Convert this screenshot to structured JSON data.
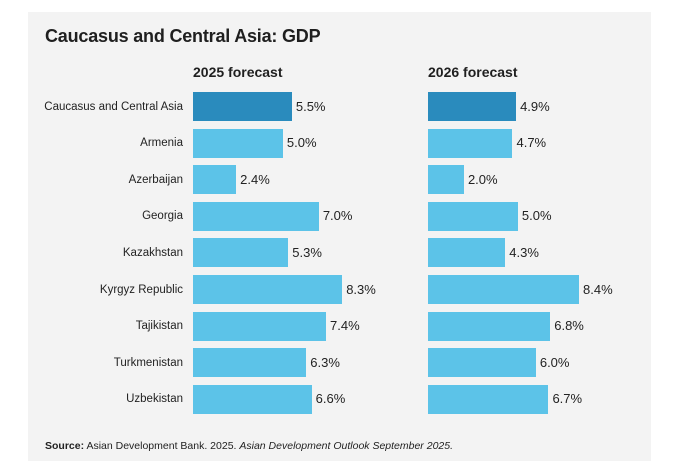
{
  "chart_data": {
    "type": "bar",
    "orientation": "horizontal",
    "title": "Caucasus and Central Asia: GDP",
    "categories": [
      "Caucasus and Central Asia",
      "Armenia",
      "Azerbaijan",
      "Georgia",
      "Kazakhstan",
      "Kyrgyz Republic",
      "Tajikistan",
      "Turkmenistan",
      "Uzbekistan"
    ],
    "series": [
      {
        "name": "2025 forecast",
        "values": [
          5.5,
          5.0,
          2.4,
          7.0,
          5.3,
          8.3,
          7.4,
          6.3,
          6.6
        ],
        "labels": [
          "5.5%",
          "5.0%",
          "2.4%",
          "7.0%",
          "5.3%",
          "8.3%",
          "7.4%",
          "6.3%",
          "6.6%"
        ]
      },
      {
        "name": "2026 forecast",
        "values": [
          4.9,
          4.7,
          2.0,
          5.0,
          4.3,
          8.4,
          6.8,
          6.0,
          6.7
        ],
        "labels": [
          "4.9%",
          "4.7%",
          "2.0%",
          "5.0%",
          "4.3%",
          "8.4%",
          "6.8%",
          "6.0%",
          "6.7%"
        ]
      }
    ],
    "xlim": [
      0,
      8.4
    ],
    "highlight_index": 0,
    "colors": {
      "highlight": "#2a8bbd",
      "bar": "#5cc3e8"
    }
  },
  "source": {
    "label": "Source:",
    "text": "Asian Development Bank. 2025.",
    "publication": "Asian Development Outlook September 2025."
  }
}
